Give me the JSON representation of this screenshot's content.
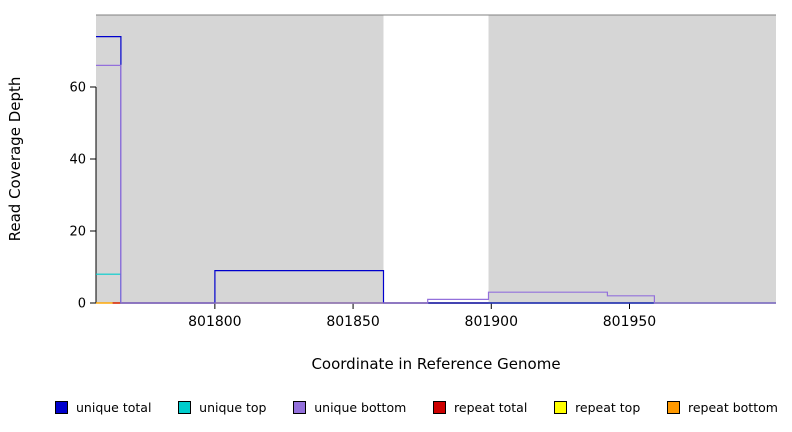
{
  "chart_data": {
    "type": "line",
    "line_style": "step",
    "title": "",
    "xlabel": "Coordinate in Reference Genome",
    "ylabel": "Read Coverage Depth",
    "xlim": [
      801757,
      802003
    ],
    "ylim": [
      0,
      80
    ],
    "xticks": [
      801800,
      801850,
      801900,
      801950
    ],
    "yticks": [
      0,
      20,
      40,
      60
    ],
    "grid": false,
    "legend_position": "bottom",
    "plot_background": "#ffffff",
    "frame_top_color": "#808080",
    "shaded_regions": [
      {
        "x0": 801757,
        "x1": 801861,
        "color": "#d6d6d6"
      },
      {
        "x0": 801899,
        "x1": 802003,
        "color": "#d6d6d6"
      }
    ],
    "draw_order": [
      4,
      5,
      3,
      1,
      0,
      2
    ],
    "series": [
      {
        "name": "unique total",
        "color": "#0000cd",
        "points": [
          [
            801757,
            74
          ],
          [
            801766,
            74
          ],
          [
            801766,
            0
          ],
          [
            801800,
            0
          ],
          [
            801800,
            9
          ],
          [
            801861,
            9
          ],
          [
            801861,
            0
          ],
          [
            802003,
            0
          ]
        ]
      },
      {
        "name": "unique top",
        "color": "#00cdcd",
        "points": [
          [
            801757,
            8
          ],
          [
            801766,
            8
          ],
          [
            801766,
            0
          ],
          [
            802003,
            0
          ]
        ]
      },
      {
        "name": "unique bottom",
        "color": "#9370db",
        "points": [
          [
            801757,
            66
          ],
          [
            801766,
            66
          ],
          [
            801766,
            0
          ],
          [
            801877,
            0
          ],
          [
            801877,
            1
          ],
          [
            801899,
            1
          ],
          [
            801899,
            3
          ],
          [
            801942,
            3
          ],
          [
            801942,
            2
          ],
          [
            801959,
            2
          ],
          [
            801959,
            0
          ],
          [
            802003,
            0
          ]
        ]
      },
      {
        "name": "repeat total",
        "color": "#cd0000",
        "points": [
          [
            801763,
            0
          ],
          [
            801899,
            0
          ]
        ]
      },
      {
        "name": "repeat top",
        "color": "#ffff00",
        "points": [
          [
            801757,
            0
          ],
          [
            802003,
            0
          ]
        ]
      },
      {
        "name": "repeat bottom",
        "color": "#ff9900",
        "points": [
          [
            801757,
            0
          ],
          [
            802003,
            0
          ]
        ]
      }
    ]
  }
}
